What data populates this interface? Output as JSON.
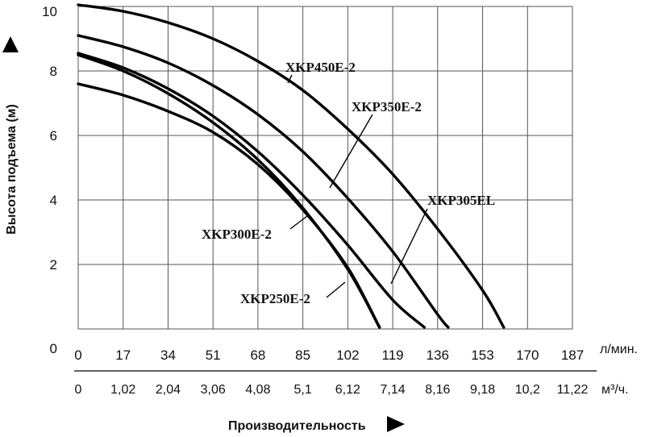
{
  "chart_data": {
    "type": "line",
    "ylabel": "Высота подъема (м)",
    "xlabel": "Производительность",
    "x_unit_primary": "л/мин.",
    "x_unit_secondary": "м³/ч.",
    "xlim": [
      0,
      187
    ],
    "ylim": [
      0,
      10
    ],
    "x_ticks_primary": [
      "0",
      "17",
      "34",
      "51",
      "68",
      "85",
      "102",
      "119",
      "136",
      "153",
      "170",
      "187"
    ],
    "x_ticks_secondary": [
      "0",
      "1,02",
      "2,04",
      "3,06",
      "4,08",
      "5,1",
      "6,12",
      "7,14",
      "8,16",
      "9,18",
      "10,2",
      "11,22"
    ],
    "y_ticks": [
      "0",
      "2",
      "4",
      "6",
      "8",
      "10"
    ],
    "grid": true,
    "series": [
      {
        "name": "XKP450E-2",
        "x": [
          0,
          17,
          34,
          51,
          68,
          85,
          102,
          119,
          136,
          153,
          161
        ],
        "y": [
          10.05,
          9.85,
          9.5,
          9.0,
          8.3,
          7.4,
          6.2,
          4.8,
          3.1,
          1.2,
          0.05
        ]
      },
      {
        "name": "XKP350E-2",
        "x": [
          0,
          17,
          34,
          51,
          68,
          85,
          102,
          119,
          136,
          140
        ],
        "y": [
          9.1,
          8.75,
          8.25,
          7.55,
          6.65,
          5.5,
          4.05,
          2.4,
          0.45,
          0.05
        ]
      },
      {
        "name": "XKP305EL",
        "x": [
          0,
          17,
          34,
          51,
          68,
          85,
          102,
          119,
          131
        ],
        "y": [
          8.55,
          8.1,
          7.45,
          6.6,
          5.5,
          4.15,
          2.6,
          0.9,
          0.05
        ]
      },
      {
        "name": "XKP300E-2",
        "x": [
          0,
          17,
          34,
          51,
          68,
          85,
          102,
          114
        ],
        "y": [
          8.5,
          8.0,
          7.3,
          6.4,
          5.25,
          3.75,
          1.85,
          0.05
        ]
      },
      {
        "name": "XKP250E-2",
        "x": [
          0,
          17,
          34,
          51,
          68,
          85,
          102,
          114
        ],
        "y": [
          7.6,
          7.25,
          6.75,
          6.1,
          5.1,
          3.7,
          1.9,
          0.05
        ]
      }
    ],
    "annotations": [
      "XKP450E-2",
      "XKP350E-2",
      "XKP305EL",
      "XKP300E-2",
      "XKP250E-2"
    ]
  }
}
